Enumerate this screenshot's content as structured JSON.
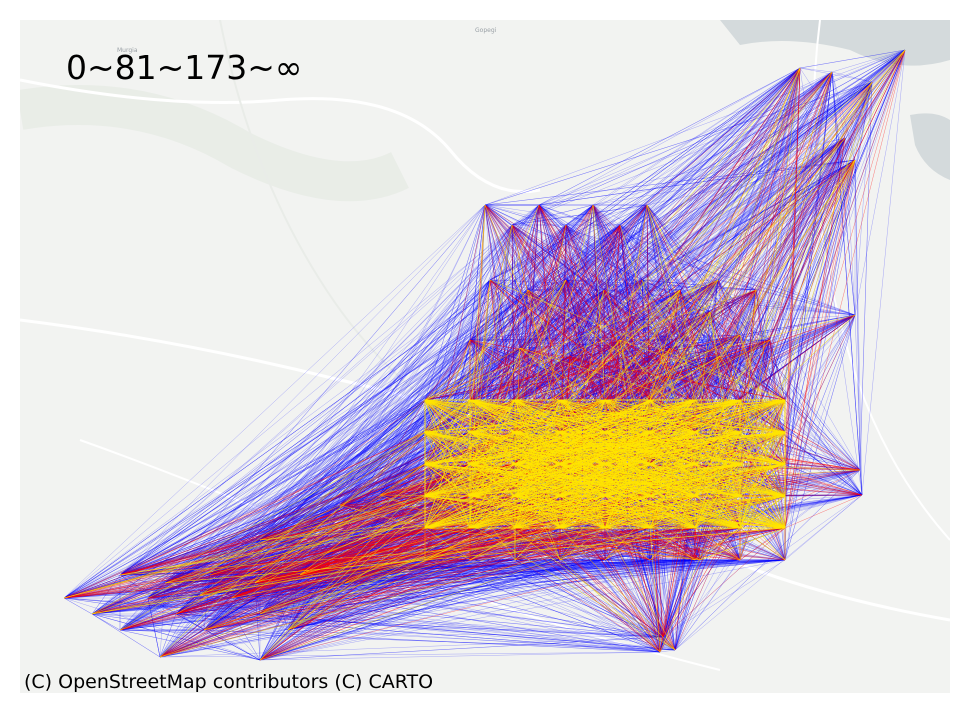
{
  "legend": {
    "text": "0~81~173~∞"
  },
  "attribution": "(C) OpenStreetMap contributors (C) CARTO",
  "place_labels": [
    "Murgia",
    "Gopegi"
  ],
  "flow_classes": [
    {
      "name": "0~81",
      "color": "#0000ff"
    },
    {
      "name": "81~173",
      "color": "#ff0000"
    },
    {
      "name": "173~∞",
      "color": "#ffe600"
    }
  ],
  "basemap": {
    "land_color": "#f2f3f1",
    "water_color": "#d4dadc",
    "road_color": "#ffffff",
    "park_color": "#e6ebe5"
  }
}
